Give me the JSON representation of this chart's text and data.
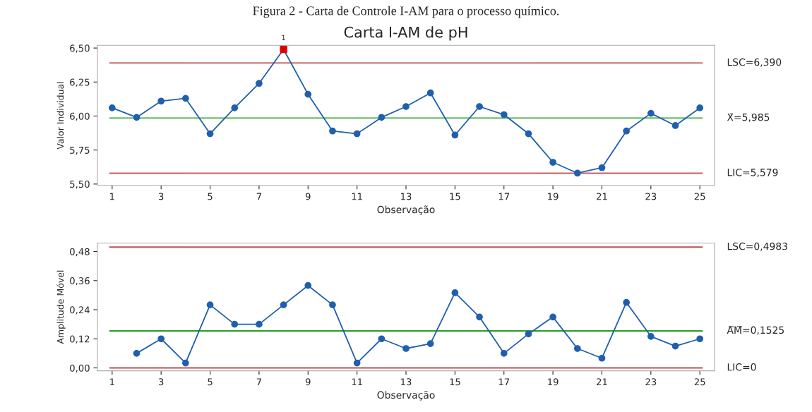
{
  "chart_data": [
    {
      "type": "line",
      "title": "Carta I-AM de pH",
      "xlabel": "Observação",
      "ylabel": "Valor Individual",
      "annotations": [
        "Figura 2 - Carta de Controle I-AM para o processo químico.",
        {
          "text": "1",
          "x": 8,
          "y": 6.49
        }
      ],
      "x": [
        1,
        2,
        3,
        4,
        5,
        6,
        7,
        8,
        9,
        10,
        11,
        12,
        13,
        14,
        15,
        16,
        17,
        18,
        19,
        20,
        21,
        22,
        23,
        24,
        25
      ],
      "series": [
        {
          "color": "#1f5fae",
          "marker": "circle",
          "values": [
            6.06,
            5.99,
            6.11,
            6.13,
            5.87,
            6.06,
            6.24,
            6.49,
            6.16,
            5.89,
            5.87,
            5.99,
            6.07,
            6.17,
            5.86,
            6.07,
            6.01,
            5.87,
            5.66,
            5.58,
            5.62,
            5.89,
            6.02,
            5.93,
            6.06
          ]
        },
        {
          "type": "scatter",
          "color": "#e00000",
          "marker": "square",
          "x": [
            8
          ],
          "values": [
            6.49
          ]
        }
      ],
      "xlim": [
        0.4,
        25.6
      ],
      "xticks": [
        1,
        3,
        5,
        7,
        9,
        11,
        13,
        15,
        17,
        19,
        21,
        23,
        25
      ],
      "ylim": [
        5.49,
        6.52
      ],
      "yticks": [
        {
          "value": 5.5,
          "label": "5,50"
        },
        {
          "value": 5.75,
          "label": "5,75"
        },
        {
          "value": 6.0,
          "label": "6,00"
        },
        {
          "value": 6.25,
          "label": "6,25"
        },
        {
          "value": 6.5,
          "label": "6,50"
        }
      ],
      "ref_lines": [
        {
          "axis": "y",
          "value": 6.39,
          "label": "LSC=6,390",
          "color": "#c87070"
        },
        {
          "axis": "y",
          "value": 5.985,
          "label": "X̄=5,985",
          "color": "#70c070"
        },
        {
          "axis": "y",
          "value": 5.579,
          "label": "LIC=5,579",
          "color": "#c87070"
        }
      ],
      "grid": false,
      "legend": false
    },
    {
      "type": "line",
      "xlabel": "Observação",
      "ylabel": "Amplitude Móvel",
      "series": [
        {
          "color": "#1f5fae",
          "marker": "circle",
          "x": [
            2,
            3,
            4,
            5,
            6,
            7,
            8,
            9,
            10,
            11,
            12,
            13,
            14,
            15,
            16,
            17,
            18,
            19,
            20,
            21,
            22,
            23,
            24,
            25
          ],
          "values": [
            0.06,
            0.12,
            0.02,
            0.26,
            0.18,
            0.18,
            0.26,
            0.34,
            0.26,
            0.02,
            0.12,
            0.08,
            0.1,
            0.31,
            0.21,
            0.06,
            0.14,
            0.21,
            0.08,
            0.04,
            0.27,
            0.13,
            0.09,
            0.12
          ]
        }
      ],
      "xlim": [
        0.4,
        25.6
      ],
      "xticks": [
        1,
        3,
        5,
        7,
        9,
        11,
        13,
        15,
        17,
        19,
        21,
        23,
        25
      ],
      "ylim": [
        -0.012,
        0.515
      ],
      "yticks": [
        {
          "value": 0,
          "label": "0,00"
        },
        {
          "value": 0.12,
          "label": "0,12"
        },
        {
          "value": 0.24,
          "label": "0,24"
        },
        {
          "value": 0.36,
          "label": "0,36"
        },
        {
          "value": 0.48,
          "label": "0,48"
        }
      ],
      "ref_lines": [
        {
          "axis": "y",
          "value": 0.4983,
          "label": "LSC=0,4983",
          "color": "#c05050"
        },
        {
          "axis": "y",
          "value": 0.1525,
          "label": "A̅M̅=0,1525",
          "color": "#30a030"
        },
        {
          "axis": "y",
          "value": 0,
          "label": "LIC=0",
          "color": "#c05050"
        }
      ],
      "grid": false,
      "legend": false
    }
  ]
}
